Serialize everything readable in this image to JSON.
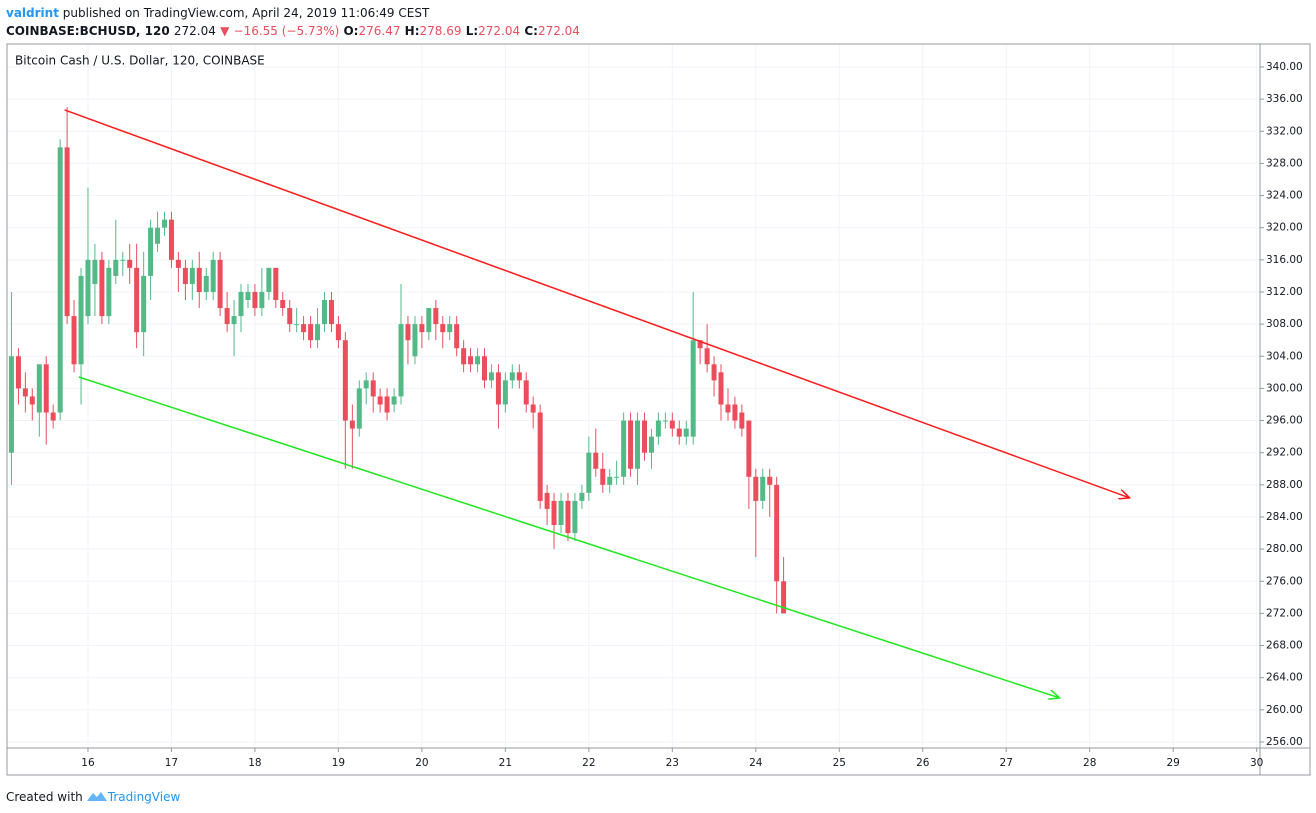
{
  "header": {
    "author": "valdrint",
    "published": "published on TradingView.com, April 24, 2019 11:06:49 CEST",
    "symbol": "COINBASE:BCHUSD, 120",
    "last": 272.04,
    "arrow": "▼",
    "change": "−16.55 (−5.73%)",
    "ohlc": [
      {
        "label": "O:",
        "value": 276.47
      },
      {
        "label": "H:",
        "value": 278.69
      },
      {
        "label": "L:",
        "value": 272.04
      },
      {
        "label": "C:",
        "value": 272.04
      }
    ]
  },
  "chart_data": {
    "type": "candlestick",
    "title": "Bitcoin Cash / U.S. Dollar, 120, COINBASE",
    "up_color": "#53b987",
    "down_color": "#eb4d5c",
    "grid": true,
    "x": [
      15.083,
      15.167,
      15.25,
      15.333,
      15.417,
      15.5,
      15.583,
      15.667,
      15.75,
      15.833,
      15.917,
      16,
      16.083,
      16.167,
      16.25,
      16.333,
      16.417,
      16.5,
      16.583,
      16.667,
      16.75,
      16.833,
      16.917,
      17,
      17.083,
      17.167,
      17.25,
      17.333,
      17.417,
      17.5,
      17.583,
      17.667,
      17.75,
      17.833,
      17.917,
      18,
      18.083,
      18.167,
      18.25,
      18.333,
      18.417,
      18.5,
      18.583,
      18.667,
      18.75,
      18.833,
      18.917,
      19,
      19.083,
      19.167,
      19.25,
      19.333,
      19.417,
      19.5,
      19.583,
      19.667,
      19.75,
      19.833,
      19.917,
      20,
      20.083,
      20.167,
      20.25,
      20.333,
      20.417,
      20.5,
      20.583,
      20.667,
      20.75,
      20.833,
      20.917,
      21,
      21.083,
      21.167,
      21.25,
      21.333,
      21.417,
      21.5,
      21.583,
      21.667,
      21.75,
      21.833,
      21.917,
      22,
      22.083,
      22.167,
      22.25,
      22.333,
      22.417,
      22.5,
      22.583,
      22.667,
      22.75,
      22.833,
      22.917,
      23,
      23.083,
      23.167,
      23.25,
      23.333,
      23.417,
      23.5,
      23.583,
      23.667,
      23.75,
      23.833,
      23.917,
      24,
      24.083,
      24.167,
      24.25,
      24.333
    ],
    "open": [
      292,
      304,
      300,
      299,
      297,
      303,
      297,
      297,
      330,
      309,
      303,
      309,
      313,
      316,
      309,
      314,
      316,
      316,
      315,
      307,
      314,
      318,
      320,
      321,
      316,
      315,
      313,
      315,
      312,
      312,
      316,
      310,
      308,
      309,
      311,
      312,
      310,
      312,
      315,
      311,
      310,
      308,
      308,
      308,
      306,
      308,
      311,
      308,
      306,
      296,
      295,
      300,
      301,
      299,
      299,
      298,
      299,
      308,
      304,
      308,
      307,
      310,
      308,
      307,
      308,
      305,
      304,
      303,
      304,
      301,
      302,
      298,
      301,
      302,
      301,
      298,
      297,
      287,
      286,
      283,
      286,
      282,
      286,
      287,
      292,
      290,
      288,
      289,
      289,
      296,
      290,
      296,
      292,
      294,
      296,
      296,
      295,
      294,
      294,
      306,
      305,
      303,
      302,
      298,
      298,
      297,
      296,
      289,
      286,
      289,
      288,
      276
    ],
    "high": [
      312,
      305,
      302,
      300,
      303,
      304,
      298,
      331,
      335,
      311,
      315,
      325,
      318,
      317,
      316,
      321,
      317,
      318,
      318,
      317,
      321,
      322,
      322,
      322,
      317,
      316,
      316,
      317,
      315,
      317,
      317,
      312,
      311,
      313,
      313,
      313,
      315,
      315,
      315,
      312,
      311,
      310,
      309,
      309,
      310,
      312,
      312,
      309,
      307,
      298,
      301,
      302,
      302,
      300,
      300,
      300,
      313,
      309,
      309,
      309,
      310,
      311,
      309,
      309,
      309,
      306,
      305,
      305,
      305,
      303,
      303,
      302,
      303,
      303,
      302,
      299,
      298,
      288,
      287,
      287,
      287,
      287,
      288,
      294,
      295,
      292,
      290,
      291,
      297,
      297,
      297,
      297,
      295,
      297,
      297,
      297,
      296,
      296,
      312,
      306,
      308,
      304,
      303,
      300,
      299,
      298,
      296,
      290,
      290,
      290,
      289,
      279
    ],
    "low": [
      288,
      298,
      297,
      296,
      294,
      293,
      295,
      296,
      308,
      302,
      298,
      308,
      309,
      308,
      308,
      313,
      314,
      313,
      305,
      304,
      311,
      317,
      319,
      315,
      312,
      311,
      311,
      310,
      311,
      311,
      309,
      307,
      304,
      307,
      310,
      309,
      309,
      311,
      310,
      309,
      307,
      307,
      306,
      305,
      305,
      307,
      307,
      305,
      290,
      290,
      294,
      298,
      297,
      297,
      296,
      297,
      298,
      303,
      303,
      305,
      306,
      306,
      305,
      306,
      304,
      302,
      302,
      302,
      300,
      300,
      295,
      297,
      300,
      300,
      297,
      295,
      285,
      283,
      280,
      282,
      281,
      281,
      285,
      286,
      289,
      287,
      287,
      288,
      288,
      289,
      288,
      291,
      290,
      293,
      295,
      294,
      293,
      293,
      293,
      303,
      302,
      299,
      296,
      296,
      295,
      294,
      285,
      279,
      285,
      284,
      272,
      272
    ],
    "close": [
      304,
      300,
      299,
      298,
      303,
      297,
      296,
      330,
      309,
      303,
      314,
      316,
      316,
      309,
      315,
      316,
      316,
      315,
      307,
      314,
      320,
      320,
      321,
      316,
      315,
      313,
      315,
      312,
      314,
      316,
      310,
      308,
      309,
      312,
      312,
      310,
      312,
      315,
      311,
      310,
      308,
      308,
      307,
      306,
      308,
      311,
      308,
      306,
      296,
      295,
      300,
      301,
      299,
      298,
      297,
      299,
      308,
      306,
      308,
      307,
      310,
      308,
      307,
      308,
      305,
      303,
      303,
      304,
      301,
      302,
      298,
      301,
      302,
      301,
      298,
      297,
      286,
      285,
      283,
      286,
      282,
      286,
      287,
      292,
      290,
      288,
      289,
      289,
      296,
      290,
      296,
      292,
      294,
      296,
      296,
      295,
      294,
      295,
      306,
      305,
      303,
      301,
      298,
      297,
      296,
      295,
      289,
      286,
      289,
      288,
      276,
      272
    ],
    "trend_lines": [
      {
        "color": "#ff1a1a",
        "x": [
          15.72,
          28.48
        ],
        "y": [
          334.65,
          286.37
        ]
      },
      {
        "color": "#1ee81e",
        "x": [
          15.89,
          27.64
        ],
        "y": [
          301.42,
          261.48
        ]
      }
    ],
    "xlim": [
      15.03,
      30.04
    ],
    "xticks": [
      16,
      17,
      18,
      19,
      20,
      21,
      22,
      23,
      24,
      25,
      26,
      27,
      28,
      29,
      30
    ],
    "ylim": [
      255.25,
      342.86
    ],
    "yticks": [
      {
        "value": 256,
        "label": "256.00"
      },
      {
        "value": 260,
        "label": "260.00"
      },
      {
        "value": 264,
        "label": "264.00"
      },
      {
        "value": 268,
        "label": "268.00"
      },
      {
        "value": 272,
        "label": "272.00"
      },
      {
        "value": 276,
        "label": "276.00"
      },
      {
        "value": 280,
        "label": "280.00"
      },
      {
        "value": 284,
        "label": "284.00"
      },
      {
        "value": 288,
        "label": "288.00"
      },
      {
        "value": 292,
        "label": "292.00"
      },
      {
        "value": 296,
        "label": "296.00"
      },
      {
        "value": 300,
        "label": "300.00"
      },
      {
        "value": 304,
        "label": "304.00"
      },
      {
        "value": 308,
        "label": "308.00"
      },
      {
        "value": 312,
        "label": "312.00"
      },
      {
        "value": 316,
        "label": "316.00"
      },
      {
        "value": 320,
        "label": "320.00"
      },
      {
        "value": 324,
        "label": "324.00"
      },
      {
        "value": 328,
        "label": "328.00"
      },
      {
        "value": 332,
        "label": "332.00"
      },
      {
        "value": 336,
        "label": "336.00"
      },
      {
        "value": 340,
        "label": "340.00"
      }
    ]
  },
  "footer": {
    "text": "Created with",
    "brand": "TradingView"
  }
}
